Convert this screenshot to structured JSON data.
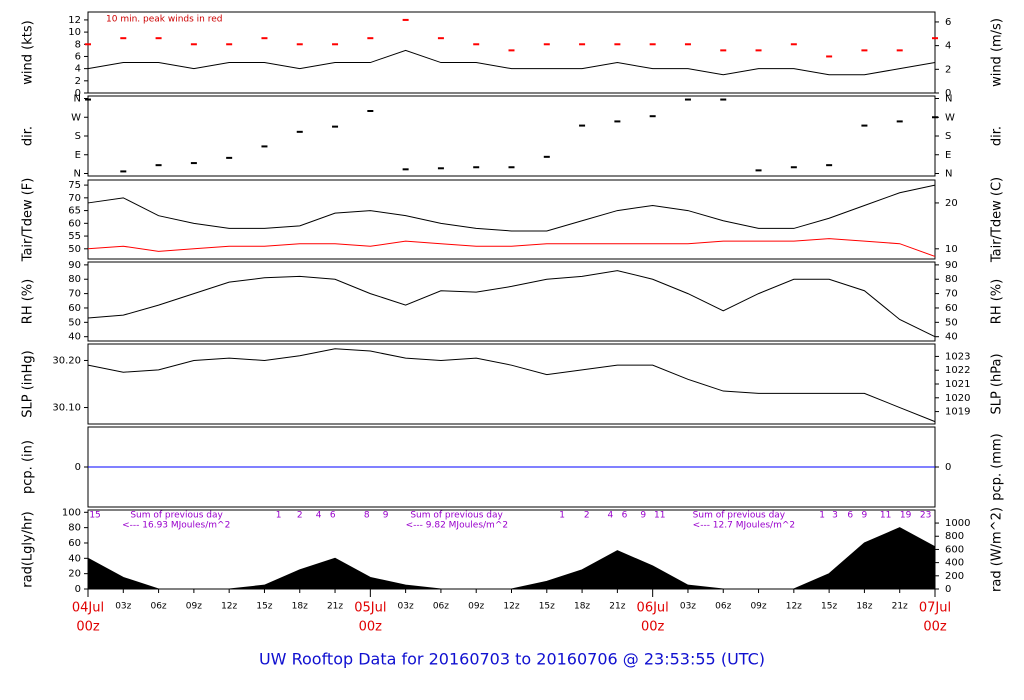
{
  "title": "UW Rooftop Data for 20160703  to  20160706 @ 23:53:55  (UTC)",
  "time_axis": {
    "xlim": [
      0,
      72
    ],
    "xticks": [
      {
        "value": 3,
        "label": "03z"
      },
      {
        "value": 6,
        "label": "06z"
      },
      {
        "value": 9,
        "label": "09z"
      },
      {
        "value": 12,
        "label": "12z"
      },
      {
        "value": 15,
        "label": "15z"
      },
      {
        "value": 18,
        "label": "18z"
      },
      {
        "value": 21,
        "label": "21z"
      },
      {
        "value": 27,
        "label": "03z"
      },
      {
        "value": 30,
        "label": "06z"
      },
      {
        "value": 33,
        "label": "09z"
      },
      {
        "value": 36,
        "label": "12z"
      },
      {
        "value": 39,
        "label": "15z"
      },
      {
        "value": 42,
        "label": "18z"
      },
      {
        "value": 45,
        "label": "21z"
      },
      {
        "value": 51,
        "label": "03z"
      },
      {
        "value": 54,
        "label": "06z"
      },
      {
        "value": 57,
        "label": "09z"
      },
      {
        "value": 60,
        "label": "12z"
      },
      {
        "value": 63,
        "label": "15z"
      },
      {
        "value": 66,
        "label": "18z"
      },
      {
        "value": 69,
        "label": "21z"
      }
    ],
    "day_ticks": [
      {
        "value": 0,
        "label": "04Jul",
        "hour": "00z"
      },
      {
        "value": 24,
        "label": "05Jul",
        "hour": "00z"
      },
      {
        "value": 48,
        "label": "06Jul",
        "hour": "00z"
      },
      {
        "value": 72,
        "label": "07Jul",
        "hour": "00z"
      }
    ]
  },
  "chart_data": [
    {
      "type": "line",
      "ylabel": "wind (kts)",
      "y2label": "wind (m/s)",
      "annotation": "10 min. peak winds in red",
      "ylim": [
        0,
        13.3
      ],
      "yticks": [
        0,
        2,
        4,
        6,
        8,
        10,
        12
      ],
      "y2lim": [
        0,
        6.84
      ],
      "y2ticks": [
        0,
        2,
        4,
        6
      ],
      "x": [
        0,
        3,
        6,
        9,
        12,
        15,
        18,
        21,
        24,
        27,
        30,
        33,
        36,
        39,
        42,
        45,
        48,
        51,
        54,
        57,
        60,
        63,
        66,
        69,
        72
      ],
      "series": [
        {
          "color": "#000000",
          "values": [
            4,
            5,
            5,
            4,
            5,
            5,
            4,
            5,
            5,
            7,
            5,
            5,
            4,
            4,
            4,
            5,
            4,
            4,
            3,
            4,
            4,
            3,
            3,
            4,
            5
          ]
        },
        {
          "color": "#ff0000",
          "style": "dash",
          "values": [
            8,
            9,
            9,
            8,
            8,
            9,
            8,
            8,
            9,
            12,
            9,
            8,
            7,
            8,
            8,
            8,
            8,
            8,
            7,
            7,
            8,
            6,
            7,
            7,
            9
          ]
        }
      ]
    },
    {
      "type": "scatter",
      "ylabel": "dir.",
      "y2label": "dir.",
      "ylim": [
        -12,
        372
      ],
      "yticks": [
        {
          "value": 0,
          "label": "N"
        },
        {
          "value": 90,
          "label": "E"
        },
        {
          "value": 180,
          "label": "S"
        },
        {
          "value": 270,
          "label": "W"
        },
        {
          "value": 360,
          "label": "N"
        }
      ],
      "y2lim": [
        -12,
        372
      ],
      "y2ticks": [
        {
          "value": 0,
          "label": "N"
        },
        {
          "value": 90,
          "label": "E"
        },
        {
          "value": 180,
          "label": "S"
        },
        {
          "value": 270,
          "label": "W"
        },
        {
          "value": 360,
          "label": "N"
        }
      ],
      "x": [
        0,
        3,
        6,
        9,
        12,
        15,
        18,
        21,
        24,
        27,
        30,
        33,
        36,
        39,
        42,
        45,
        48,
        51,
        54,
        57,
        60,
        63,
        66,
        69,
        72
      ],
      "series": [
        {
          "color": "#000000",
          "values": [
            355,
            10,
            40,
            50,
            75,
            130,
            200,
            225,
            300,
            20,
            25,
            30,
            30,
            80,
            230,
            250,
            275,
            355,
            355,
            15,
            30,
            40,
            230,
            250,
            270
          ]
        }
      ]
    },
    {
      "type": "line",
      "ylabel": "Tair/Tdew (F)",
      "y2label": "Tair/Tdew (C)",
      "ylim": [
        46,
        77
      ],
      "yticks": [
        50,
        55,
        60,
        65,
        70,
        75
      ],
      "y2lim": [
        7.78,
        25
      ],
      "y2ticks": [
        10,
        20
      ],
      "x": [
        0,
        3,
        6,
        9,
        12,
        15,
        18,
        21,
        24,
        27,
        30,
        33,
        36,
        39,
        42,
        45,
        48,
        51,
        54,
        57,
        60,
        63,
        66,
        69,
        72
      ],
      "series": [
        {
          "color": "#000000",
          "values": [
            68,
            70,
            63,
            60,
            58,
            58,
            59,
            64,
            65,
            63,
            60,
            58,
            57,
            57,
            61,
            65,
            67,
            65,
            61,
            58,
            58,
            62,
            67,
            72,
            75
          ]
        },
        {
          "color": "#ff0000",
          "values": [
            50,
            51,
            49,
            50,
            51,
            51,
            52,
            52,
            51,
            53,
            52,
            51,
            51,
            52,
            52,
            52,
            52,
            52,
            53,
            53,
            53,
            54,
            53,
            52,
            47
          ]
        }
      ]
    },
    {
      "type": "line",
      "ylabel": "RH (%)",
      "y2label": "RH (%)",
      "ylim": [
        37,
        92
      ],
      "yticks": [
        40,
        50,
        60,
        70,
        80,
        90
      ],
      "y2lim": [
        37,
        92
      ],
      "y2ticks": [
        40,
        50,
        60,
        70,
        80,
        90
      ],
      "x": [
        0,
        3,
        6,
        9,
        12,
        15,
        18,
        21,
        24,
        27,
        30,
        33,
        36,
        39,
        42,
        45,
        48,
        51,
        54,
        57,
        60,
        63,
        66,
        69,
        72
      ],
      "series": [
        {
          "color": "#000000",
          "values": [
            53,
            55,
            62,
            70,
            78,
            81,
            82,
            80,
            70,
            62,
            72,
            71,
            75,
            80,
            82,
            86,
            80,
            70,
            58,
            70,
            80,
            80,
            72,
            52,
            40
          ]
        }
      ]
    },
    {
      "type": "line",
      "ylabel": "SLP (inHg)",
      "y2label": "SLP (hPa)",
      "ylim": [
        30.065,
        30.235
      ],
      "yticks": [
        {
          "value": 30.1,
          "label": "30.10"
        },
        {
          "value": 30.2,
          "label": "30.20"
        }
      ],
      "y2lim": [
        1018.1,
        1023.9
      ],
      "y2ticks": [
        1019,
        1020,
        1021,
        1022,
        1023
      ],
      "x": [
        0,
        3,
        6,
        9,
        12,
        15,
        18,
        21,
        24,
        27,
        30,
        33,
        36,
        39,
        42,
        45,
        48,
        51,
        54,
        57,
        60,
        63,
        66,
        69,
        72
      ],
      "series": [
        {
          "color": "#000000",
          "values": [
            30.19,
            30.175,
            30.18,
            30.2,
            30.205,
            30.2,
            30.21,
            30.225,
            30.22,
            30.205,
            30.2,
            30.205,
            30.19,
            30.17,
            30.18,
            30.19,
            30.19,
            30.16,
            30.135,
            30.13,
            30.13,
            30.13,
            30.13,
            30.1,
            30.07
          ]
        }
      ]
    },
    {
      "type": "line",
      "ylabel": "pcp. (in)",
      "y2label": "pcp. (mm)",
      "ylim": [
        -1,
        1
      ],
      "yticks": [
        0
      ],
      "y2lim": [
        -25.4,
        25.4
      ],
      "y2ticks": [
        0
      ],
      "x": [
        0,
        72
      ],
      "series": [
        {
          "color": "#0000ff",
          "values": [
            0,
            0
          ]
        }
      ]
    },
    {
      "type": "area",
      "ylabel": "rad(Lgly/hr)",
      "y2label": "rad (W/m^2)",
      "ylim": [
        0,
        103
      ],
      "yticks": [
        0,
        20,
        40,
        60,
        80,
        100
      ],
      "y2lim": [
        0,
        1198
      ],
      "y2ticks": [
        0,
        200,
        400,
        600,
        800,
        1000
      ],
      "x": [
        0,
        3,
        6,
        9,
        12,
        15,
        18,
        21,
        24,
        27,
        30,
        33,
        36,
        39,
        42,
        45,
        48,
        51,
        54,
        57,
        60,
        63,
        66,
        69,
        72
      ],
      "series": [
        {
          "color": "#000000",
          "values": [
            40,
            15,
            0,
            0,
            0,
            5,
            25,
            40,
            15,
            5,
            0,
            0,
            0,
            10,
            25,
            50,
            30,
            5,
            0,
            0,
            0,
            20,
            60,
            80,
            55
          ]
        }
      ],
      "notes": [
        {
          "text": "Sum of previous day",
          "x": 3.6,
          "row": 0
        },
        {
          "text": "<--- 16.93 MJoules/m^2",
          "x": 2.9,
          "row": 1
        },
        {
          "text": "Sum of previous day",
          "x": 27.4,
          "row": 0
        },
        {
          "text": "<--- 9.82 MJoules/m^2",
          "x": 27,
          "row": 1
        },
        {
          "text": "Sum of previous day",
          "x": 51.4,
          "row": 0
        },
        {
          "text": "<--- 12.7 MJoules/m^2",
          "x": 51.4,
          "row": 1
        }
      ],
      "hour_marks": [
        {
          "x": 0.6,
          "label": "15"
        },
        {
          "x": 16.2,
          "label": "1"
        },
        {
          "x": 18,
          "label": "2"
        },
        {
          "x": 19.6,
          "label": "4"
        },
        {
          "x": 20.8,
          "label": "6"
        },
        {
          "x": 23.7,
          "label": "8"
        },
        {
          "x": 25.3,
          "label": "9"
        },
        {
          "x": 40.3,
          "label": "1"
        },
        {
          "x": 42.4,
          "label": "2"
        },
        {
          "x": 44.4,
          "label": "4"
        },
        {
          "x": 45.6,
          "label": "6"
        },
        {
          "x": 47.2,
          "label": "9"
        },
        {
          "x": 48.6,
          "label": "11"
        },
        {
          "x": 62.4,
          "label": "1"
        },
        {
          "x": 63.5,
          "label": "3"
        },
        {
          "x": 64.8,
          "label": "6"
        },
        {
          "x": 66,
          "label": "9"
        },
        {
          "x": 67.8,
          "label": "11"
        },
        {
          "x": 69.5,
          "label": "19"
        },
        {
          "x": 71.2,
          "label": "23"
        }
      ]
    }
  ]
}
